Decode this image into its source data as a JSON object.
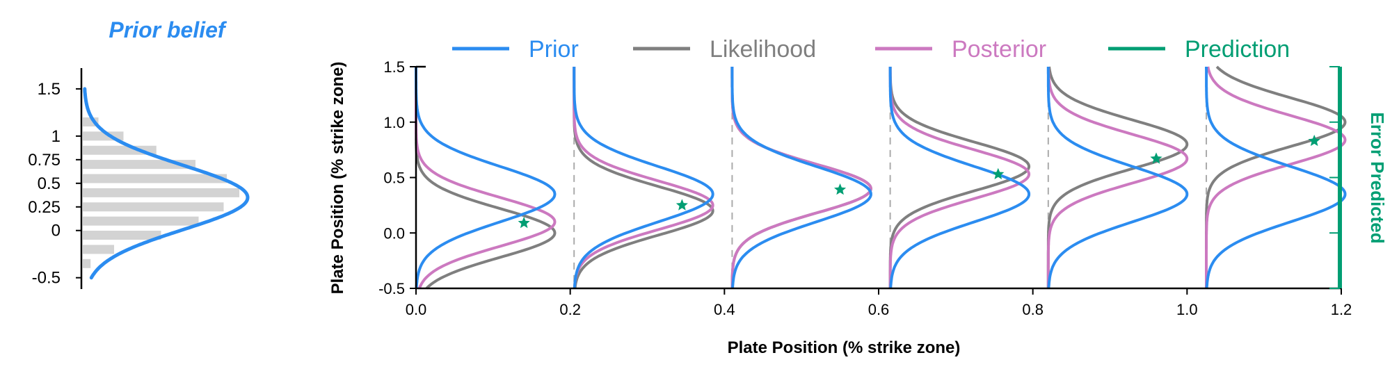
{
  "colors": {
    "prior": "#2b8cf0",
    "likelihood": "#7f7f7f",
    "posterior": "#cc79c0",
    "prediction": "#009e73",
    "histogram": "#d3d3d3",
    "connector": "#aaaaaa"
  },
  "chart_data": [
    {
      "type": "area",
      "title": "Prior belief",
      "ylim": [
        -0.62,
        1.72
      ],
      "yticks": [
        {
          "value": 1.5,
          "label": "1.5"
        },
        {
          "value": 1.0,
          "label": "1"
        },
        {
          "value": 0.75,
          "label": "0.75"
        },
        {
          "value": 0.5,
          "label": "0.5"
        },
        {
          "value": 0.25,
          "label": "0.25"
        },
        {
          "value": 0.0,
          "label": "0"
        },
        {
          "value": -0.5,
          "label": "-0.5"
        }
      ],
      "prior_curve": {
        "mean": 0.35,
        "sd": 0.34,
        "range": [
          -0.5,
          1.5
        ]
      },
      "histogram": {
        "bins": [
          -0.35,
          -0.2,
          -0.05,
          0.1,
          0.25,
          0.4,
          0.55,
          0.7,
          0.85,
          1.0,
          1.15
        ],
        "values": [
          0.05,
          0.2,
          0.5,
          0.74,
          0.9,
          1.0,
          0.92,
          0.72,
          0.47,
          0.26,
          0.1
        ]
      }
    },
    {
      "type": "line",
      "xlabel": "Plate Position (% strike zone)",
      "ylabel": "Plate Position (% strike zone)",
      "right_label": "Error Predicted",
      "xlim": [
        0.0,
        1.2
      ],
      "ylim": [
        -0.5,
        1.5
      ],
      "xticks": [
        "0.0",
        "0.2",
        "0.4",
        "0.6",
        "0.8",
        "1.0",
        "1.2"
      ],
      "yticks": [
        "-0.5",
        "0.0",
        "0.5",
        "1.0",
        "1.5"
      ],
      "legend": {
        "position": "top",
        "entries": [
          {
            "name": "Prior",
            "color_key": "prior"
          },
          {
            "name": "Likelihood",
            "color_key": "likelihood"
          },
          {
            "name": "Posterior",
            "color_key": "posterior"
          },
          {
            "name": "Prediction",
            "color_key": "prediction"
          }
        ]
      },
      "panels": [
        {
          "x0": 0.0,
          "prior_mean": 0.35,
          "prior_sd": 0.25,
          "lik_mean": 0.0,
          "lik_sd": 0.22,
          "post_mean": 0.1,
          "post_sd": 0.22,
          "prediction": {
            "x": 0.14,
            "y": 0.09
          }
        },
        {
          "x0": 0.205,
          "prior_mean": 0.35,
          "prior_sd": 0.25,
          "lik_mean": 0.2,
          "lik_sd": 0.22,
          "post_mean": 0.25,
          "post_sd": 0.22,
          "prediction": {
            "x": 0.345,
            "y": 0.25
          }
        },
        {
          "x0": 0.41,
          "prior_mean": 0.35,
          "prior_sd": 0.25,
          "lik_mean": 0.4,
          "lik_sd": 0.22,
          "post_mean": 0.4,
          "post_sd": 0.22,
          "prediction": {
            "x": 0.55,
            "y": 0.39
          }
        },
        {
          "x0": 0.615,
          "prior_mean": 0.35,
          "prior_sd": 0.25,
          "lik_mean": 0.6,
          "lik_sd": 0.22,
          "post_mean": 0.53,
          "post_sd": 0.22,
          "prediction": {
            "x": 0.755,
            "y": 0.53
          }
        },
        {
          "x0": 0.82,
          "prior_mean": 0.35,
          "prior_sd": 0.25,
          "lik_mean": 0.8,
          "lik_sd": 0.22,
          "post_mean": 0.67,
          "post_sd": 0.22,
          "prediction": {
            "x": 0.96,
            "y": 0.67
          }
        },
        {
          "x0": 1.025,
          "prior_mean": 0.35,
          "prior_sd": 0.25,
          "lik_mean": 1.0,
          "lik_sd": 0.22,
          "post_mean": 0.84,
          "post_sd": 0.22,
          "prediction": {
            "x": 1.165,
            "y": 0.83
          }
        }
      ]
    }
  ]
}
